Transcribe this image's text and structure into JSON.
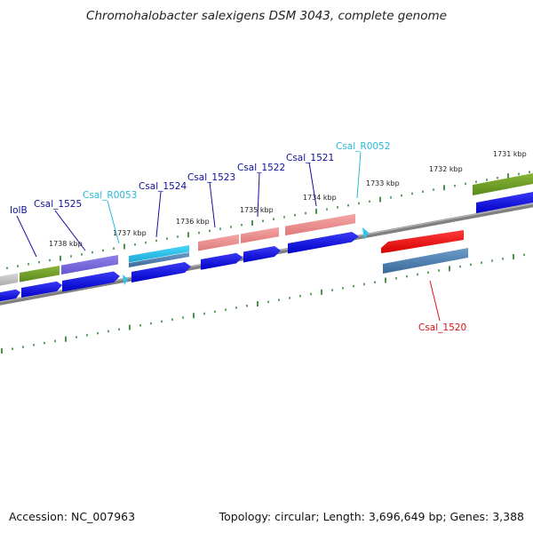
{
  "title": "Chromohalobacter salexigens DSM 3043, complete genome",
  "footer": {
    "accession": "Accession: NC_007963",
    "summary": "Topology: circular; Length: 3,696,649 bp; Genes: 3,388"
  },
  "colors": {
    "cds": "#0a0ae6",
    "trna": "#29c6ee",
    "gene_label": "#10109a",
    "rna_label": "#29b9d8",
    "highlight_label": "#dd1111",
    "ticks": "#1d7a1d",
    "backbone": "#808080"
  },
  "kbp_labels": [
    "1738 kbp",
    "1737 kbp",
    "1736 kbp",
    "1735 kbp",
    "1734 kbp",
    "1733 kbp",
    "1732 kbp",
    "1731 kbp"
  ],
  "gene_labels": [
    {
      "text": "IolB",
      "kind": "gene"
    },
    {
      "text": "Csal_1525",
      "kind": "gene"
    },
    {
      "text": "Csal_R0053",
      "kind": "rna"
    },
    {
      "text": "Csal_1524",
      "kind": "gene"
    },
    {
      "text": "Csal_1523",
      "kind": "gene"
    },
    {
      "text": "Csal_1522",
      "kind": "gene"
    },
    {
      "text": "Csal_1521",
      "kind": "gene"
    },
    {
      "text": "Csal_R0052",
      "kind": "rna"
    },
    {
      "text": "Csal_1520",
      "kind": "highlight"
    }
  ]
}
